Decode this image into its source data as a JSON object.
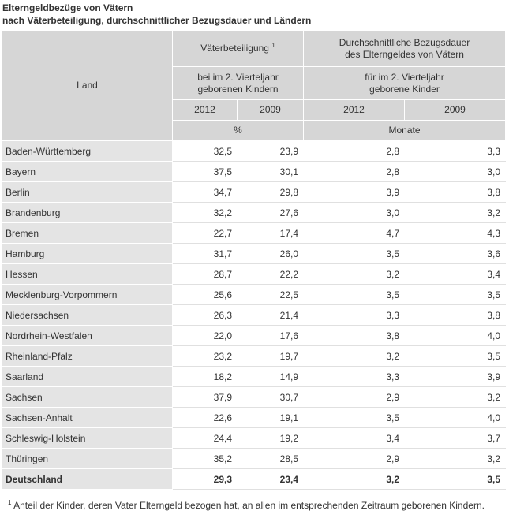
{
  "title_line1": "Elterngeldbezüge von Vätern",
  "title_line2": "nach Väterbeteiligung, durchschnittlicher Bezugsdauer und Ländern",
  "header": {
    "land": "Land",
    "vaeterbeteiligung": "Väterbeteiligung",
    "footnote_mark": "1",
    "bezugsdauer_line1": "Durchschnittliche Bezugsdauer",
    "bezugsdauer_line2": "des Elterngeldes von Vätern",
    "sub_left_line1": "bei im 2. Vierteljahr",
    "sub_left_line2": "geborenen Kindern",
    "sub_right_line1": "für im 2. Vierteljahr",
    "sub_right_line2": "geborene Kinder",
    "year_a": "2012",
    "year_b": "2009",
    "year_c": "2012",
    "year_d": "2009",
    "unit_left": "%",
    "unit_right": "Monate"
  },
  "rows": [
    {
      "land": "Baden-Württemberg",
      "v2012": "32,5",
      "v2009": "23,9",
      "d2012": "2,8",
      "d2009": "3,3"
    },
    {
      "land": "Bayern",
      "v2012": "37,5",
      "v2009": "30,1",
      "d2012": "2,8",
      "d2009": "3,0"
    },
    {
      "land": "Berlin",
      "v2012": "34,7",
      "v2009": "29,8",
      "d2012": "3,9",
      "d2009": "3,8"
    },
    {
      "land": "Brandenburg",
      "v2012": "32,2",
      "v2009": "27,6",
      "d2012": "3,0",
      "d2009": "3,2"
    },
    {
      "land": "Bremen",
      "v2012": "22,7",
      "v2009": "17,4",
      "d2012": "4,7",
      "d2009": "4,3"
    },
    {
      "land": "Hamburg",
      "v2012": "31,7",
      "v2009": "26,0",
      "d2012": "3,5",
      "d2009": "3,6"
    },
    {
      "land": "Hessen",
      "v2012": "28,7",
      "v2009": "22,2",
      "d2012": "3,2",
      "d2009": "3,4"
    },
    {
      "land": "Mecklenburg-Vorpommern",
      "v2012": "25,6",
      "v2009": "22,5",
      "d2012": "3,5",
      "d2009": "3,5"
    },
    {
      "land": "Niedersachsen",
      "v2012": "26,3",
      "v2009": "21,4",
      "d2012": "3,3",
      "d2009": "3,8"
    },
    {
      "land": "Nordrhein-Westfalen",
      "v2012": "22,0",
      "v2009": "17,6",
      "d2012": "3,8",
      "d2009": "4,0"
    },
    {
      "land": "Rheinland-Pfalz",
      "v2012": "23,2",
      "v2009": "19,7",
      "d2012": "3,2",
      "d2009": "3,5"
    },
    {
      "land": "Saarland",
      "v2012": "18,2",
      "v2009": "14,9",
      "d2012": "3,3",
      "d2009": "3,9"
    },
    {
      "land": "Sachsen",
      "v2012": "37,9",
      "v2009": "30,7",
      "d2012": "2,9",
      "d2009": "3,2"
    },
    {
      "land": "Sachsen-Anhalt",
      "v2012": "22,6",
      "v2009": "19,1",
      "d2012": "3,5",
      "d2009": "4,0"
    },
    {
      "land": "Schleswig-Holstein",
      "v2012": "24,4",
      "v2009": "19,2",
      "d2012": "3,4",
      "d2009": "3,7"
    },
    {
      "land": "Thüringen",
      "v2012": "35,2",
      "v2009": "28,5",
      "d2012": "2,9",
      "d2009": "3,2"
    },
    {
      "land": "Deutschland",
      "v2012": "29,3",
      "v2009": "23,4",
      "d2012": "3,2",
      "d2009": "3,5",
      "total": true
    }
  ],
  "footnote": {
    "mark": "1",
    "text": "Anteil der Kinder, deren Vater Elterngeld bezogen hat, an allen im entsprechenden Zeitraum geborenen Kindern."
  }
}
